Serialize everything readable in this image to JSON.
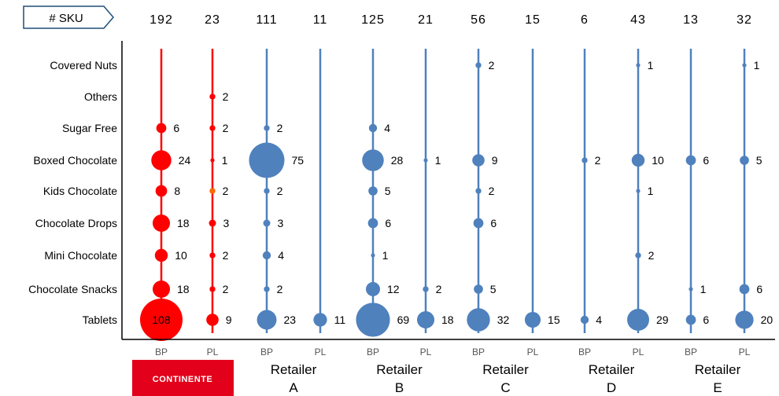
{
  "header": {
    "sku_label": "# SKU"
  },
  "chart_data": {
    "type": "bubble",
    "categories": [
      "Covered Nuts",
      "Others",
      "Sugar Free",
      "Boxed Chocolate",
      "Kids Chocolate",
      "Chocolate Drops",
      "Mini Chocolate",
      "Chocolate Snacks",
      "Tablets"
    ],
    "columns": [
      {
        "group": "CONTINENTE",
        "type": "BP",
        "sku_total": 192,
        "color": "#ff0000",
        "values": [
          null,
          null,
          6,
          24,
          8,
          18,
          10,
          18,
          108
        ]
      },
      {
        "group": "CONTINENTE",
        "type": "PL",
        "sku_total": 23,
        "color": "#ff0000",
        "values": [
          null,
          2,
          2,
          1,
          2,
          3,
          2,
          2,
          9
        ]
      },
      {
        "group": "Retailer A",
        "type": "BP",
        "sku_total": 111,
        "color": "#4f81bd",
        "values": [
          null,
          null,
          2,
          75,
          2,
          3,
          4,
          2,
          23
        ]
      },
      {
        "group": "Retailer A",
        "type": "PL",
        "sku_total": 11,
        "color": "#4f81bd",
        "values": [
          null,
          null,
          null,
          null,
          null,
          null,
          null,
          null,
          11
        ]
      },
      {
        "group": "Retailer B",
        "type": "BP",
        "sku_total": 125,
        "color": "#4f81bd",
        "values": [
          null,
          null,
          4,
          28,
          5,
          6,
          1,
          12,
          69
        ]
      },
      {
        "group": "Retailer B",
        "type": "PL",
        "sku_total": 21,
        "color": "#4f81bd",
        "values": [
          null,
          null,
          null,
          1,
          null,
          null,
          null,
          2,
          18
        ]
      },
      {
        "group": "Retailer C",
        "type": "BP",
        "sku_total": 56,
        "color": "#4f81bd",
        "values": [
          2,
          null,
          null,
          9,
          2,
          6,
          null,
          5,
          32
        ]
      },
      {
        "group": "Retailer C",
        "type": "PL",
        "sku_total": 15,
        "color": "#4f81bd",
        "values": [
          null,
          null,
          null,
          null,
          null,
          null,
          null,
          null,
          15
        ]
      },
      {
        "group": "Retailer D",
        "type": "BP",
        "sku_total": 6,
        "color": "#4f81bd",
        "values": [
          null,
          null,
          null,
          2,
          null,
          null,
          null,
          null,
          4
        ]
      },
      {
        "group": "Retailer D",
        "type": "PL",
        "sku_total": 43,
        "color": "#4f81bd",
        "values": [
          1,
          null,
          null,
          10,
          1,
          null,
          2,
          null,
          29
        ]
      },
      {
        "group": "Retailer E",
        "type": "BP",
        "sku_total": 13,
        "color": "#4f81bd",
        "values": [
          null,
          null,
          null,
          6,
          null,
          null,
          null,
          1,
          6
        ]
      },
      {
        "group": "Retailer E",
        "type": "PL",
        "sku_total": 32,
        "color": "#4f81bd",
        "values": [
          1,
          null,
          null,
          5,
          null,
          null,
          null,
          6,
          20
        ]
      }
    ],
    "groups": [
      {
        "name": "CONTINENTE",
        "logo": true,
        "line1": "",
        "line2": ""
      },
      {
        "name": "Retailer A",
        "line1": "Retailer",
        "line2": "A"
      },
      {
        "name": "Retailer B",
        "line1": "Retailer",
        "line2": "B"
      },
      {
        "name": "Retailer C",
        "line1": "Retailer",
        "line2": "C"
      },
      {
        "name": "Retailer D",
        "line1": "Retailer",
        "line2": "D"
      },
      {
        "name": "Retailer E",
        "line1": "Retailer",
        "line2": "E"
      }
    ],
    "highlight_color": "#ff0000",
    "base_color": "#4f81bd"
  },
  "logo": {
    "text": "CONTINENTE",
    "color": "#e2001a"
  }
}
